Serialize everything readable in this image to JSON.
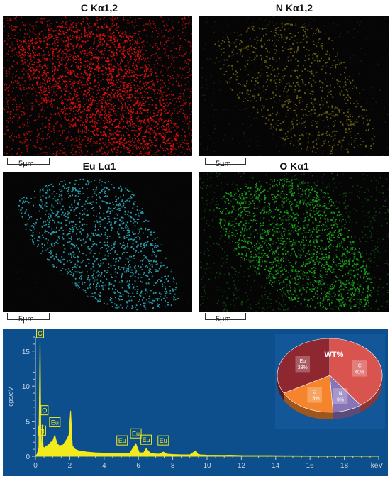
{
  "maps": [
    {
      "id": "c",
      "title": "C Kα1,2",
      "scale_label": "5µm",
      "color": "#e01010"
    },
    {
      "id": "n",
      "title": "N Kα1,2",
      "scale_label": "5µm",
      "color": "#b8a21e"
    },
    {
      "id": "eu",
      "title": "Eu Lα1",
      "scale_label": "5µm",
      "color": "#2fb7c9"
    },
    {
      "id": "o",
      "title": "O Kα1",
      "scale_label": "5µm",
      "color": "#1fbf1f"
    }
  ],
  "chart_data": [
    {
      "type": "line",
      "ylabel": "cps/eV",
      "xunit": "keV",
      "xlim": [
        0,
        20
      ],
      "ylim": [
        0,
        17
      ],
      "x_ticks": [
        0,
        2,
        4,
        6,
        8,
        10,
        12,
        14,
        16,
        18
      ],
      "y_ticks": [
        0,
        5,
        10,
        15
      ],
      "series": [
        {
          "x": [
            0,
            0.1,
            0.2,
            0.27,
            0.32,
            0.36,
            0.39,
            0.45,
            0.52,
            0.6,
            0.75,
            0.9,
            1.0,
            1.13,
            1.25,
            1.4,
            1.6,
            1.75,
            1.85,
            1.95,
            2.05,
            2.15,
            2.3,
            2.5,
            3,
            3.5,
            4,
            4.5,
            5,
            5.5,
            5.85,
            6.05,
            6.3,
            6.45,
            6.7,
            6.9,
            7.2,
            7.45,
            7.7,
            8,
            8.5,
            9,
            9.35,
            9.45,
            9.6,
            10,
            11,
            11.3,
            12,
            14,
            16,
            18,
            20
          ],
          "y": [
            0,
            0.3,
            1.2,
            16.5,
            2,
            1.5,
            4.5,
            1.3,
            1.2,
            1.4,
            1.6,
            2,
            2.1,
            3,
            1.8,
            1.5,
            1.6,
            2.1,
            2.5,
            3,
            6.5,
            1.5,
            1,
            0.8,
            0.6,
            0.5,
            0.45,
            0.45,
            0.4,
            0.45,
            1.8,
            0.5,
            0.5,
            1.1,
            0.4,
            0.35,
            0.3,
            0.6,
            0.3,
            0.25,
            0.2,
            0.2,
            0.8,
            0.3,
            0.2,
            0.15,
            0.12,
            0.15,
            0.1,
            0.08,
            0.05,
            0.04,
            0.03
          ]
        }
      ],
      "annotations": [
        {
          "label": "C",
          "x": 0.27,
          "y": 16.5
        },
        {
          "label": "O",
          "x": 0.53,
          "y": 5.5
        },
        {
          "label": "N",
          "x": 0.39,
          "y": 2.6
        },
        {
          "label": "Eu",
          "x": 1.13,
          "y": 3.8
        },
        {
          "label": "Eu",
          "x": 5.85,
          "y": 2.2
        },
        {
          "label": "Eu",
          "x": 6.45,
          "y": 1.3
        },
        {
          "label": "Eu",
          "x": 5.05,
          "y": 1.2
        },
        {
          "label": "Eu",
          "x": 7.45,
          "y": 1.2
        }
      ]
    },
    {
      "type": "pie",
      "title": "WT%",
      "slices": [
        {
          "label": "C",
          "value": 40,
          "text": "40%",
          "color": "#d9534f"
        },
        {
          "label": "N",
          "value": 9,
          "text": "9%",
          "color": "#8a74b8"
        },
        {
          "label": "O",
          "value": 18,
          "text": "18%",
          "color": "#f5842c"
        },
        {
          "label": "Eu",
          "value": 33,
          "text": "33%",
          "color": "#8e2730"
        }
      ]
    }
  ]
}
